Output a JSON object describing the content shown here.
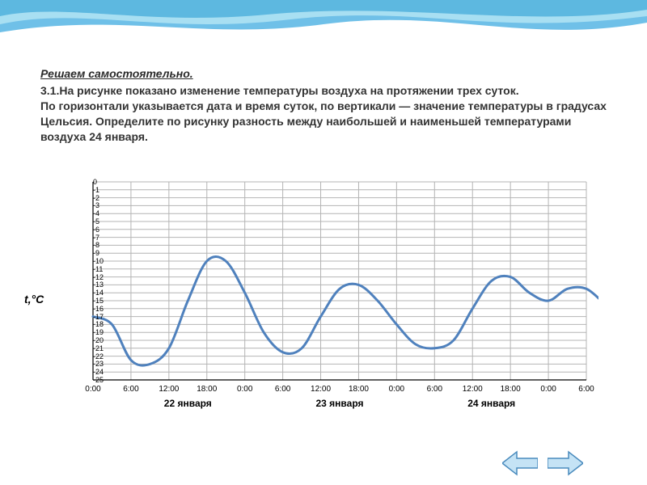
{
  "header": {
    "title": "Решаем самостоятельно.",
    "body1": "3.1.На рисунке показано изменение температуры воздуха на протяжении трех суток.",
    "body2": "По горизонтали указывается дата и время суток, по вертикали — значение температуры в градусах Цельсия. Определите по рисунку разность между наибольшей и наименьшей температурами воздуха 24 января."
  },
  "wave": {
    "colors": [
      "#6fc0e8",
      "#a8dff2",
      "#5db8e0",
      "#ffffff"
    ]
  },
  "chart": {
    "type": "line",
    "y_label": "t,°C",
    "y_label_fontsize": 14,
    "ylim": [
      -25,
      0
    ],
    "ytick_step": 1,
    "x_times": [
      "0:00",
      "6:00",
      "12:00",
      "18:00",
      "0:00",
      "6:00",
      "12:00",
      "18:00",
      "0:00",
      "6:00",
      "12:00",
      "18:00",
      "0:00",
      "6:00"
    ],
    "x_dates": [
      "22 января",
      "23 января",
      "24 января"
    ],
    "x_date_positions": [
      2.5,
      6.5,
      10.5
    ],
    "line_color": "#4f81bd",
    "line_width": 3,
    "grid_color": "#b4b4b4",
    "grid_width": 1,
    "axis_color": "#000000",
    "background_color": "#ffffff",
    "tick_fontsize": 9,
    "xtick_fontsize": 10,
    "date_fontsize": 12,
    "data_points": [
      [
        0,
        -17
      ],
      [
        0.5,
        -18
      ],
      [
        1,
        -22.5
      ],
      [
        1.5,
        -23
      ],
      [
        2,
        -21
      ],
      [
        2.5,
        -15
      ],
      [
        3,
        -10
      ],
      [
        3.5,
        -10
      ],
      [
        4,
        -14
      ],
      [
        4.5,
        -19
      ],
      [
        5,
        -21.5
      ],
      [
        5.5,
        -21
      ],
      [
        6,
        -17
      ],
      [
        6.5,
        -13.5
      ],
      [
        7,
        -13
      ],
      [
        7.5,
        -15
      ],
      [
        8,
        -18
      ],
      [
        8.5,
        -20.5
      ],
      [
        9,
        -21
      ],
      [
        9.5,
        -20
      ],
      [
        10,
        -16
      ],
      [
        10.5,
        -12.5
      ],
      [
        11,
        -12
      ],
      [
        11.5,
        -14
      ],
      [
        12,
        -15
      ],
      [
        12.5,
        -13.5
      ],
      [
        13,
        -13.5
      ],
      [
        13.5,
        -15.5
      ]
    ]
  },
  "nav": {
    "prev_icon": "arrow-left",
    "next_icon": "arrow-right",
    "arrow_fill": "#c5e3f5",
    "arrow_stroke": "#4a8bbd"
  }
}
